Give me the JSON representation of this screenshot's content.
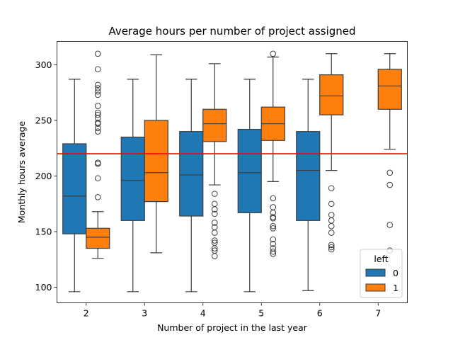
{
  "chart_data": {
    "type": "box",
    "title": "Average hours per number of project assigned",
    "xlabel": "Number of project in the last year",
    "ylabel": "Monthly hours average",
    "categories": [
      "2",
      "3",
      "4",
      "5",
      "6",
      "7"
    ],
    "ylim": [
      86,
      321
    ],
    "yticks": [
      100,
      150,
      200,
      250,
      300
    ],
    "reference_line": {
      "y": 220,
      "color": "#ff0000"
    },
    "grid": false,
    "legend": {
      "title": "left",
      "placement": "lower-right"
    },
    "series": [
      {
        "name": "0",
        "color": "#1f77b4",
        "boxes": [
          {
            "category": "2",
            "whisker_low": 96,
            "q1": 148,
            "median": 182,
            "q3": 229,
            "whisker_high": 287,
            "outliers": []
          },
          {
            "category": "3",
            "whisker_low": 96,
            "q1": 160,
            "median": 196,
            "q3": 235,
            "whisker_high": 287,
            "outliers": []
          },
          {
            "category": "4",
            "whisker_low": 96,
            "q1": 164,
            "median": 201,
            "q3": 240,
            "whisker_high": 287,
            "outliers": []
          },
          {
            "category": "5",
            "whisker_low": 96,
            "q1": 167,
            "median": 203,
            "q3": 242,
            "whisker_high": 287,
            "outliers": []
          },
          {
            "category": "6",
            "whisker_low": 97,
            "q1": 160,
            "median": 205,
            "q3": 240,
            "whisker_high": 287,
            "outliers": []
          }
        ]
      },
      {
        "name": "1",
        "color": "#ff7f0e",
        "boxes": [
          {
            "category": "2",
            "whisker_low": 126,
            "q1": 135,
            "median": 145,
            "q3": 153,
            "whisker_high": 168,
            "outliers": [
              181,
              198,
              211,
              212,
              240,
              243,
              247,
              248,
              252,
              255,
              257,
              263,
              273,
              276,
              279,
              282,
              296,
              310
            ]
          },
          {
            "category": "3",
            "whisker_low": 131,
            "q1": 177,
            "median": 203,
            "q3": 250,
            "whisker_high": 309,
            "outliers": []
          },
          {
            "category": "4",
            "whisker_low": 192,
            "q1": 231,
            "median": 247,
            "q3": 260,
            "whisker_high": 301,
            "outliers": [
              128,
              133,
              135,
              140,
              142,
              149,
              154,
              158,
              166,
              170,
              175,
              184
            ]
          },
          {
            "category": "5",
            "whisker_low": 195,
            "q1": 232,
            "median": 247,
            "q3": 262,
            "whisker_high": 307,
            "outliers": [
              130,
              132,
              135,
              139,
              143,
              153,
              155,
              162,
              163,
              167,
              172,
              180,
              310
            ]
          },
          {
            "category": "6",
            "whisker_low": 205,
            "q1": 255,
            "median": 272,
            "q3": 291,
            "whisker_high": 310,
            "outliers": [
              134,
              136,
              138,
              149,
              155,
              160,
              165,
              175,
              189
            ]
          },
          {
            "category": "7",
            "whisker_low": 224,
            "q1": 260,
            "median": 281,
            "q3": 296,
            "whisker_high": 310,
            "outliers": [
              133,
              156,
              192,
              203
            ]
          }
        ]
      }
    ]
  }
}
